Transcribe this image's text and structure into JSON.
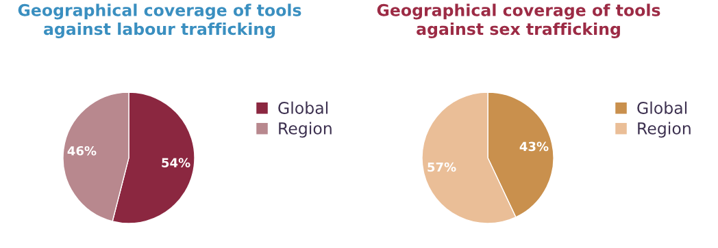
{
  "chart_data": [
    {
      "type": "pie",
      "title": "Geographical coverage of tools\nagainst labour trafficking",
      "categories": [
        "Global",
        "Region"
      ],
      "values": [
        54,
        46
      ],
      "colors": [
        "#8b2740",
        "#b8888e"
      ],
      "value_labels": [
        "54%",
        "46%"
      ],
      "legend": "right"
    },
    {
      "type": "pie",
      "title": "Geographical coverage of tools\nagainst sex trafficking",
      "categories": [
        "Global",
        "Region"
      ],
      "values": [
        43,
        57
      ],
      "colors": [
        "#c9904d",
        "#eabe97"
      ],
      "value_labels": [
        "43%",
        "57%"
      ],
      "legend": "right"
    }
  ]
}
